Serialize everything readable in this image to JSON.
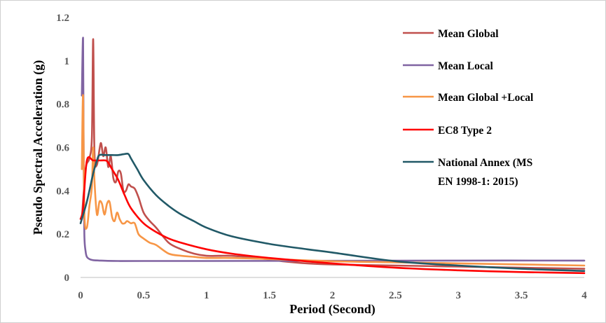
{
  "chart_data": {
    "type": "line",
    "title": "",
    "xlabel": "Period (Second)",
    "ylabel": "Pseudo Spectral Acceleration (g)",
    "xlim": [
      0,
      4
    ],
    "ylim": [
      0,
      1.2
    ],
    "x_ticks": [
      0,
      0.5,
      1,
      1.5,
      2,
      2.5,
      3,
      3.5,
      4
    ],
    "x_tick_labels": [
      "0",
      "0.5",
      "1",
      "1.5",
      "2",
      "2.5",
      "3",
      "3.5",
      "4"
    ],
    "y_ticks": [
      0,
      0.2,
      0.4,
      0.6,
      0.8,
      1,
      1.2
    ],
    "y_tick_labels": [
      "0",
      "0.2",
      "0.4",
      "0.6",
      "0.8",
      "1",
      "1.2"
    ],
    "grid": false,
    "legend_position": "top-right",
    "series": [
      {
        "name": "Mean Global",
        "color": "#C0504D",
        "x": [
          0.01,
          0.04,
          0.07,
          0.09,
          0.1,
          0.11,
          0.13,
          0.16,
          0.18,
          0.2,
          0.22,
          0.24,
          0.26,
          0.28,
          0.3,
          0.32,
          0.34,
          0.36,
          0.38,
          0.4,
          0.43,
          0.46,
          0.5,
          0.55,
          0.6,
          0.7,
          0.8,
          0.9,
          1.0,
          1.1,
          1.2,
          1.4,
          1.6,
          1.8,
          2.0,
          2.5,
          3.0,
          3.5,
          4.0
        ],
        "y": [
          0.27,
          0.5,
          0.55,
          0.65,
          1.1,
          0.58,
          0.52,
          0.62,
          0.56,
          0.6,
          0.51,
          0.56,
          0.46,
          0.44,
          0.49,
          0.48,
          0.4,
          0.4,
          0.43,
          0.42,
          0.41,
          0.37,
          0.3,
          0.26,
          0.23,
          0.16,
          0.13,
          0.11,
          0.1,
          0.1,
          0.1,
          0.09,
          0.075,
          0.065,
          0.06,
          0.055,
          0.05,
          0.045,
          0.04
        ]
      },
      {
        "name": "Mean Local",
        "color": "#8064A2",
        "x": [
          0.01,
          0.02,
          0.025,
          0.03,
          0.04,
          0.05,
          0.07,
          0.1,
          0.15,
          0.2,
          0.3,
          0.5,
          1.0,
          2.0,
          3.0,
          4.0
        ],
        "y": [
          0.84,
          1.1,
          0.5,
          0.2,
          0.12,
          0.095,
          0.085,
          0.08,
          0.078,
          0.077,
          0.076,
          0.076,
          0.076,
          0.077,
          0.078,
          0.078
        ]
      },
      {
        "name": "Mean Global +Local",
        "color": "#F79646",
        "x": [
          0.01,
          0.02,
          0.03,
          0.05,
          0.07,
          0.09,
          0.1,
          0.11,
          0.13,
          0.15,
          0.17,
          0.19,
          0.21,
          0.23,
          0.25,
          0.27,
          0.29,
          0.31,
          0.33,
          0.35,
          0.37,
          0.4,
          0.43,
          0.46,
          0.5,
          0.55,
          0.6,
          0.7,
          0.8,
          0.9,
          1.0,
          1.2,
          1.5,
          2.0,
          2.5,
          3.0,
          3.5,
          4.0
        ],
        "y": [
          0.5,
          0.84,
          0.3,
          0.23,
          0.33,
          0.42,
          0.6,
          0.45,
          0.29,
          0.35,
          0.34,
          0.29,
          0.34,
          0.35,
          0.28,
          0.26,
          0.3,
          0.27,
          0.25,
          0.25,
          0.26,
          0.25,
          0.25,
          0.2,
          0.18,
          0.16,
          0.15,
          0.11,
          0.1,
          0.095,
          0.09,
          0.09,
          0.085,
          0.075,
          0.07,
          0.065,
          0.06,
          0.055
        ]
      },
      {
        "name": "EC8 Type 2",
        "color": "#FF0000",
        "x": [
          0.0,
          0.02,
          0.05,
          0.1,
          0.15,
          0.2,
          0.22,
          0.25,
          0.3,
          0.35,
          0.4,
          0.5,
          0.6,
          0.7,
          0.8,
          1.0,
          1.2,
          1.5,
          2.0,
          2.5,
          3.0,
          3.5,
          4.0
        ],
        "y": [
          0.27,
          0.32,
          0.54,
          0.54,
          0.54,
          0.54,
          0.53,
          0.5,
          0.45,
          0.38,
          0.32,
          0.25,
          0.21,
          0.18,
          0.16,
          0.13,
          0.11,
          0.09,
          0.065,
          0.045,
          0.033,
          0.025,
          0.02
        ]
      },
      {
        "name": "National Annex (MS EN 1998-1: 2015)",
        "color": "#215967",
        "x": [
          0.0,
          0.05,
          0.1,
          0.13,
          0.15,
          0.2,
          0.25,
          0.3,
          0.35,
          0.38,
          0.4,
          0.45,
          0.5,
          0.6,
          0.7,
          0.8,
          0.9,
          1.0,
          1.2,
          1.5,
          1.8,
          2.0,
          2.5,
          3.0,
          3.5,
          4.0
        ],
        "y": [
          0.25,
          0.35,
          0.48,
          0.54,
          0.565,
          0.565,
          0.565,
          0.565,
          0.57,
          0.57,
          0.55,
          0.5,
          0.45,
          0.38,
          0.33,
          0.29,
          0.26,
          0.23,
          0.19,
          0.155,
          0.13,
          0.115,
          0.075,
          0.055,
          0.04,
          0.03
        ]
      }
    ]
  },
  "legend": {
    "entries": [
      {
        "lines": [
          "Mean Global"
        ],
        "color": "#C0504D"
      },
      {
        "lines": [
          "Mean Local"
        ],
        "color": "#8064A2"
      },
      {
        "lines": [
          "Mean Global +Local"
        ],
        "color": "#F79646"
      },
      {
        "lines": [
          "EC8 Type 2"
        ],
        "color": "#FF0000"
      },
      {
        "lines": [
          "National Annex (MS",
          "EN 1998-1: 2015)"
        ],
        "color": "#215967"
      }
    ]
  }
}
